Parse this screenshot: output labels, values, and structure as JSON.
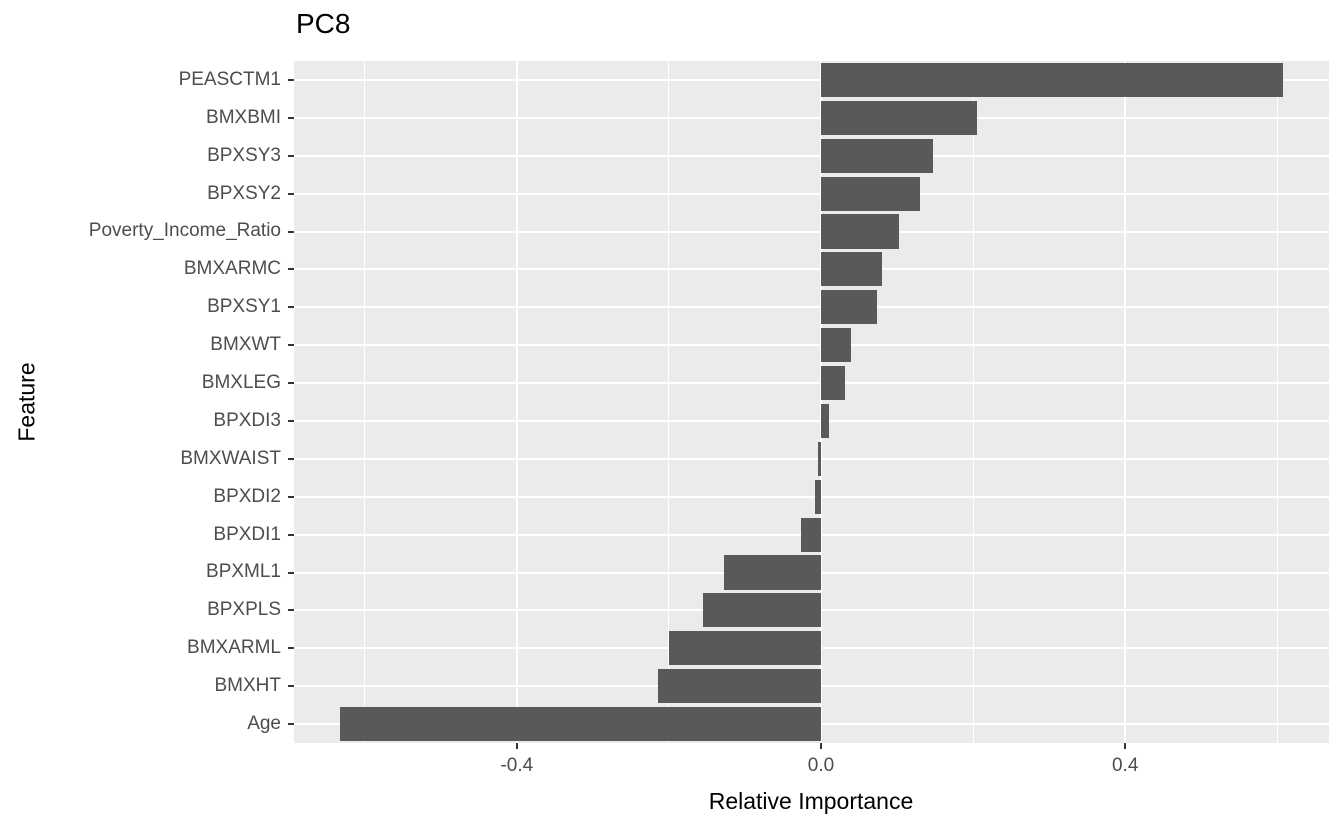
{
  "chart_data": {
    "type": "bar",
    "orientation": "horizontal",
    "title": "PC8",
    "xlabel": "Relative Importance",
    "ylabel": "Feature",
    "categories": [
      "PEASCTM1",
      "BMXBMI",
      "BPXSY3",
      "BPXSY2",
      "Poverty_Income_Ratio",
      "BMXARMC",
      "BPXSY1",
      "BMXWT",
      "BMXLEG",
      "BPXDI3",
      "BMXWAIST",
      "BPXDI2",
      "BPXDI1",
      "BPXML1",
      "BPXPLS",
      "BMXARML",
      "BMXHT",
      "Age"
    ],
    "values": [
      0.607,
      0.205,
      0.147,
      0.13,
      0.102,
      0.08,
      0.073,
      0.04,
      0.032,
      0.011,
      -0.004,
      -0.008,
      -0.026,
      -0.127,
      -0.155,
      -0.2,
      -0.214,
      -0.633
    ],
    "xlim": [
      -0.693,
      0.668
    ],
    "x_major_ticks": [
      -0.4,
      0.0,
      0.4
    ],
    "x_major_tick_labels": [
      "-0.4",
      "0.0",
      "0.4"
    ],
    "x_minor_gridlines": [
      -0.6,
      -0.2,
      0.2,
      0.6
    ],
    "grid": "on",
    "legend": "none",
    "colors": {
      "bar_fill": "#595959",
      "panel_background": "#ebebeb",
      "gridline": "#ffffff",
      "axis_text": "#4d4d4d",
      "axis_title": "#000000",
      "tick_mark": "#333333",
      "title_text": "#000000"
    }
  }
}
